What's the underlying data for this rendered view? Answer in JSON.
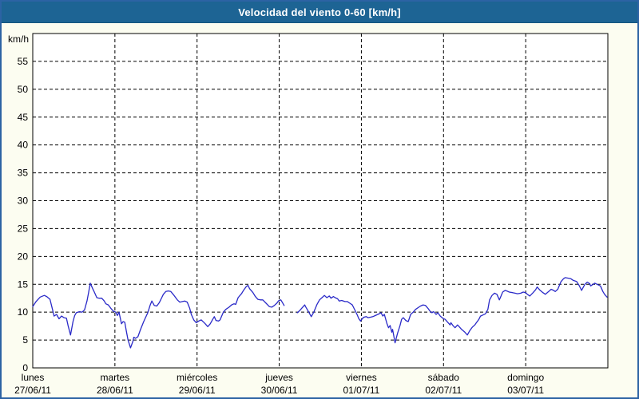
{
  "window": {
    "title": "Velocidad del viento 0-60 [km/h]"
  },
  "colors": {
    "titlebar_bg": "#1d6494",
    "titlebar_text": "#ffffff",
    "window_border": "#2c63a4",
    "frame_bg": "#fcfdf1",
    "plot_bg": "#ffffff",
    "plot_frame": "#000000",
    "grid": "#000000",
    "line": "#2a2ac8"
  },
  "chart_data": {
    "type": "line",
    "title": "Velocidad del viento 0-60 [km/h]",
    "ylabel": "km/h",
    "xlabel": "",
    "ylim": [
      0,
      60
    ],
    "yticks": [
      0,
      5,
      10,
      15,
      20,
      25,
      30,
      35,
      40,
      45,
      50,
      55
    ],
    "grid": "dashed",
    "legend": "none",
    "x_categories": [
      {
        "day": "lunes",
        "date": "27/06/11"
      },
      {
        "day": "martes",
        "date": "28/06/11"
      },
      {
        "day": "miércoles",
        "date": "29/06/11"
      },
      {
        "day": "jueves",
        "date": "30/06/11"
      },
      {
        "day": "viernes",
        "date": "01/07/11"
      },
      {
        "day": "sábado",
        "date": "02/07/11"
      },
      {
        "day": "domingo",
        "date": "03/07/11"
      }
    ],
    "x_unit": "days (0 = start of lunes 27/06/11, 7 = end of domingo 03/07/11)",
    "series": [
      {
        "name": "velocidad del viento [km/h]",
        "color": "#2a2ac8",
        "note": "data gap between t=3.06 and t=3.22 (start of jueves)",
        "segments": [
          [
            [
              0,
              11.0
            ],
            [
              0.04,
              11.9
            ],
            [
              0.09,
              12.7
            ],
            [
              0.14,
              13.0
            ],
            [
              0.17,
              12.8
            ],
            [
              0.21,
              12.3
            ],
            [
              0.24,
              10.5
            ],
            [
              0.26,
              9.3
            ],
            [
              0.29,
              9.6
            ],
            [
              0.32,
              8.8
            ],
            [
              0.35,
              9.3
            ],
            [
              0.38,
              9.0
            ],
            [
              0.41,
              8.9
            ],
            [
              0.43,
              7.6
            ],
            [
              0.46,
              5.9
            ],
            [
              0.49,
              8.3
            ],
            [
              0.51,
              9.4
            ],
            [
              0.53,
              9.9
            ],
            [
              0.57,
              10.1
            ],
            [
              0.6,
              10.0
            ],
            [
              0.63,
              10.4
            ],
            [
              0.66,
              12.0
            ],
            [
              0.68,
              13.5
            ],
            [
              0.7,
              15.2
            ],
            [
              0.73,
              14.2
            ],
            [
              0.75,
              13.6
            ],
            [
              0.78,
              12.6
            ],
            [
              0.81,
              12.5
            ],
            [
              0.84,
              12.5
            ],
            [
              0.87,
              12.0
            ],
            [
              0.89,
              11.5
            ],
            [
              0.92,
              11.3
            ],
            [
              0.95,
              10.7
            ],
            [
              0.98,
              10.2
            ],
            [
              1.01,
              10.0
            ],
            [
              1.03,
              9.4
            ],
            [
              1.05,
              10.0
            ],
            [
              1.08,
              7.9
            ],
            [
              1.1,
              8.3
            ],
            [
              1.12,
              8.2
            ],
            [
              1.14,
              6.5
            ],
            [
              1.16,
              5.0
            ],
            [
              1.19,
              3.6
            ],
            [
              1.22,
              4.8
            ],
            [
              1.23,
              5.5
            ],
            [
              1.25,
              5.3
            ],
            [
              1.28,
              5.6
            ],
            [
              1.31,
              6.8
            ],
            [
              1.35,
              8.3
            ],
            [
              1.4,
              9.9
            ],
            [
              1.43,
              11.3
            ],
            [
              1.45,
              12.0
            ],
            [
              1.48,
              11.2
            ],
            [
              1.51,
              11.1
            ],
            [
              1.54,
              11.7
            ],
            [
              1.57,
              12.6
            ],
            [
              1.59,
              13.2
            ],
            [
              1.62,
              13.7
            ],
            [
              1.65,
              13.8
            ],
            [
              1.68,
              13.7
            ],
            [
              1.72,
              13.0
            ],
            [
              1.76,
              12.2
            ],
            [
              1.79,
              11.8
            ],
            [
              1.82,
              11.9
            ],
            [
              1.85,
              12.0
            ],
            [
              1.88,
              11.8
            ],
            [
              1.91,
              10.7
            ],
            [
              1.93,
              9.6
            ],
            [
              1.96,
              8.6
            ],
            [
              1.99,
              8.1
            ],
            [
              2.02,
              8.4
            ],
            [
              2.05,
              8.6
            ],
            [
              2.08,
              8.2
            ],
            [
              2.1,
              7.9
            ],
            [
              2.13,
              7.4
            ],
            [
              2.16,
              7.9
            ],
            [
              2.19,
              8.7
            ],
            [
              2.21,
              9.2
            ],
            [
              2.23,
              8.5
            ],
            [
              2.26,
              8.4
            ],
            [
              2.28,
              8.6
            ],
            [
              2.32,
              10.0
            ],
            [
              2.35,
              10.5
            ],
            [
              2.39,
              10.9
            ],
            [
              2.42,
              11.3
            ],
            [
              2.45,
              11.5
            ],
            [
              2.47,
              11.4
            ],
            [
              2.5,
              12.6
            ],
            [
              2.54,
              13.3
            ],
            [
              2.57,
              14.0
            ],
            [
              2.6,
              14.6
            ],
            [
              2.62,
              14.8
            ],
            [
              2.64,
              14.2
            ],
            [
              2.68,
              13.5
            ],
            [
              2.71,
              12.8
            ],
            [
              2.74,
              12.3
            ],
            [
              2.77,
              12.2
            ],
            [
              2.8,
              12.2
            ],
            [
              2.84,
              11.6
            ],
            [
              2.88,
              11.0
            ],
            [
              2.91,
              10.9
            ],
            [
              2.94,
              11.2
            ],
            [
              2.97,
              11.6
            ],
            [
              2.99,
              12.0
            ],
            [
              3.0,
              12.1
            ],
            [
              3.02,
              12.2
            ],
            [
              3.04,
              11.7
            ],
            [
              3.06,
              11.2
            ]
          ],
          [
            [
              3.22,
              9.9
            ],
            [
              3.25,
              10.3
            ],
            [
              3.28,
              10.8
            ],
            [
              3.31,
              11.3
            ],
            [
              3.32,
              11.0
            ],
            [
              3.36,
              10.0
            ],
            [
              3.39,
              9.2
            ],
            [
              3.42,
              10.0
            ],
            [
              3.46,
              11.4
            ],
            [
              3.49,
              12.2
            ],
            [
              3.52,
              12.6
            ],
            [
              3.55,
              13.0
            ],
            [
              3.58,
              12.6
            ],
            [
              3.61,
              12.9
            ],
            [
              3.63,
              12.5
            ],
            [
              3.66,
              12.8
            ],
            [
              3.68,
              12.6
            ],
            [
              3.71,
              12.4
            ],
            [
              3.73,
              12.0
            ],
            [
              3.76,
              12.1
            ],
            [
              3.8,
              11.9
            ],
            [
              3.83,
              11.9
            ],
            [
              3.86,
              11.6
            ],
            [
              3.89,
              11.3
            ],
            [
              3.92,
              10.4
            ],
            [
              3.95,
              9.5
            ],
            [
              3.97,
              8.8
            ],
            [
              3.99,
              8.4
            ],
            [
              4.01,
              8.8
            ],
            [
              4.03,
              9.1
            ],
            [
              4.06,
              9.2
            ],
            [
              4.08,
              9.0
            ],
            [
              4.11,
              9.1
            ],
            [
              4.14,
              9.2
            ],
            [
              4.17,
              9.4
            ],
            [
              4.2,
              9.6
            ],
            [
              4.24,
              9.9
            ],
            [
              4.26,
              9.3
            ],
            [
              4.28,
              9.6
            ],
            [
              4.31,
              8.0
            ],
            [
              4.33,
              7.2
            ],
            [
              4.35,
              7.6
            ],
            [
              4.37,
              6.4
            ],
            [
              4.38,
              6.9
            ],
            [
              4.41,
              4.5
            ],
            [
              4.44,
              6.2
            ],
            [
              4.47,
              7.6
            ],
            [
              4.49,
              8.7
            ],
            [
              4.51,
              9.0
            ],
            [
              4.54,
              8.5
            ],
            [
              4.57,
              8.3
            ],
            [
              4.6,
              9.6
            ],
            [
              4.63,
              10.0
            ],
            [
              4.66,
              10.5
            ],
            [
              4.7,
              10.9
            ],
            [
              4.72,
              11.1
            ],
            [
              4.75,
              11.3
            ],
            [
              4.78,
              11.2
            ],
            [
              4.81,
              10.7
            ],
            [
              4.84,
              10.1
            ],
            [
              4.86,
              9.9
            ],
            [
              4.88,
              10.1
            ],
            [
              4.91,
              9.6
            ],
            [
              4.93,
              9.9
            ],
            [
              4.96,
              9.3
            ],
            [
              4.99,
              8.9
            ],
            [
              5.02,
              8.7
            ],
            [
              5.05,
              8.2
            ],
            [
              5.08,
              7.7
            ],
            [
              5.09,
              8.1
            ],
            [
              5.12,
              7.5
            ],
            [
              5.14,
              7.2
            ],
            [
              5.17,
              7.7
            ],
            [
              5.19,
              7.4
            ],
            [
              5.22,
              6.9
            ],
            [
              5.26,
              6.4
            ],
            [
              5.29,
              5.9
            ],
            [
              5.32,
              6.7
            ],
            [
              5.35,
              7.3
            ],
            [
              5.38,
              7.7
            ],
            [
              5.4,
              8.1
            ],
            [
              5.43,
              8.7
            ],
            [
              5.45,
              9.3
            ],
            [
              5.48,
              9.5
            ],
            [
              5.51,
              9.7
            ],
            [
              5.54,
              10.5
            ],
            [
              5.56,
              12.2
            ],
            [
              5.59,
              13.0
            ],
            [
              5.62,
              13.4
            ],
            [
              5.65,
              13.2
            ],
            [
              5.68,
              12.2
            ],
            [
              5.7,
              12.9
            ],
            [
              5.72,
              13.6
            ],
            [
              5.75,
              13.9
            ],
            [
              5.77,
              13.8
            ],
            [
              5.8,
              13.6
            ],
            [
              5.84,
              13.5
            ],
            [
              5.87,
              13.4
            ],
            [
              5.9,
              13.3
            ],
            [
              5.94,
              13.4
            ],
            [
              5.97,
              13.6
            ],
            [
              6.0,
              13.5
            ],
            [
              6.02,
              13.2
            ],
            [
              6.05,
              12.9
            ],
            [
              6.09,
              13.5
            ],
            [
              6.12,
              14.0
            ],
            [
              6.14,
              14.5
            ],
            [
              6.17,
              14.0
            ],
            [
              6.21,
              13.5
            ],
            [
              6.24,
              13.2
            ],
            [
              6.28,
              13.7
            ],
            [
              6.31,
              14.1
            ],
            [
              6.34,
              13.9
            ],
            [
              6.36,
              13.7
            ],
            [
              6.39,
              14.1
            ],
            [
              6.43,
              15.5
            ],
            [
              6.46,
              16.0
            ],
            [
              6.48,
              16.2
            ],
            [
              6.52,
              16.1
            ],
            [
              6.55,
              16.0
            ],
            [
              6.58,
              15.7
            ],
            [
              6.62,
              15.5
            ],
            [
              6.65,
              14.8
            ],
            [
              6.68,
              13.9
            ],
            [
              6.72,
              15.0
            ],
            [
              6.75,
              15.4
            ],
            [
              6.78,
              15.1
            ],
            [
              6.79,
              14.7
            ],
            [
              6.82,
              15.0
            ],
            [
              6.84,
              15.2
            ],
            [
              6.87,
              15.0
            ],
            [
              6.91,
              14.7
            ],
            [
              6.94,
              13.7
            ],
            [
              6.96,
              13.2
            ],
            [
              6.99,
              12.7
            ]
          ]
        ]
      }
    ]
  }
}
